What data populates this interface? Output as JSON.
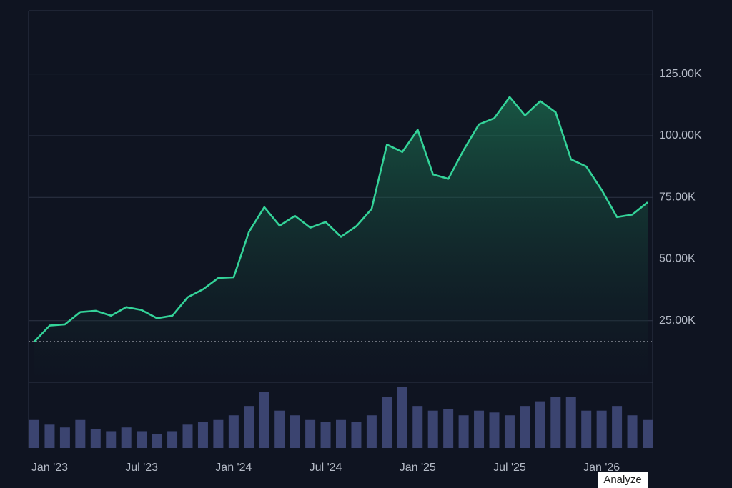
{
  "chart_data": {
    "type": "line",
    "x": [
      "2022-12",
      "2023-01",
      "2023-02",
      "2023-03",
      "2023-04",
      "2023-05",
      "2023-06",
      "2023-07",
      "2023-08",
      "2023-09",
      "2023-10",
      "2023-11",
      "2023-12",
      "2024-01",
      "2024-02",
      "2024-03",
      "2024-04",
      "2024-05",
      "2024-06",
      "2024-07",
      "2024-08",
      "2024-09",
      "2024-10",
      "2024-11",
      "2024-12",
      "2025-01",
      "2025-02",
      "2025-03",
      "2025-04",
      "2025-05",
      "2025-06",
      "2025-07",
      "2025-08",
      "2025-09",
      "2025-10",
      "2025-11",
      "2025-12",
      "2026-01",
      "2026-02",
      "2026-03",
      "2026-04"
    ],
    "series": [
      {
        "color": "#34d399",
        "values": [
          16500,
          23000,
          23500,
          28500,
          29000,
          27000,
          30500,
          29300,
          26000,
          27000,
          34500,
          37700,
          42300,
          42600,
          61000,
          71000,
          63500,
          67500,
          62700,
          65000,
          59000,
          63300,
          70300,
          96400,
          93400,
          102400,
          84300,
          82500,
          94200,
          104600,
          107100,
          115700,
          108200,
          114000,
          109500,
          90400,
          87500,
          78000,
          67000,
          68000,
          73000
        ]
      },
      {
        "color": "#3b4470",
        "values": [
          30,
          25,
          22,
          30,
          20,
          18,
          22,
          18,
          15,
          18,
          25,
          28,
          30,
          35,
          45,
          60,
          40,
          35,
          30,
          28,
          30,
          28,
          35,
          55,
          65,
          45,
          40,
          42,
          35,
          40,
          38,
          35,
          45,
          50,
          55,
          55,
          40,
          40,
          45,
          35,
          30
        ]
      }
    ],
    "xlim": [
      "2022-12",
      "2026-04"
    ],
    "xticks": [
      {
        "value": "2023-01",
        "label": "Jan '23"
      },
      {
        "value": "2023-07",
        "label": "Jul '23"
      },
      {
        "value": "2024-01",
        "label": "Jan '24"
      },
      {
        "value": "2024-07",
        "label": "Jul '24"
      },
      {
        "value": "2025-01",
        "label": "Jan '25"
      },
      {
        "value": "2025-07",
        "label": "Jul '25"
      },
      {
        "value": "2026-01",
        "label": "Jan '26"
      }
    ],
    "ylim": [
      0,
      150700
    ],
    "yticks": [
      {
        "value": 25000,
        "label": "25.00K"
      },
      {
        "value": 50000,
        "label": "50.00K"
      },
      {
        "value": 75000,
        "label": "75.00K"
      },
      {
        "value": 100000,
        "label": "100.00K"
      },
      {
        "value": 125000,
        "label": "125.00K"
      }
    ],
    "grid": true,
    "annotation": "Analyze"
  }
}
